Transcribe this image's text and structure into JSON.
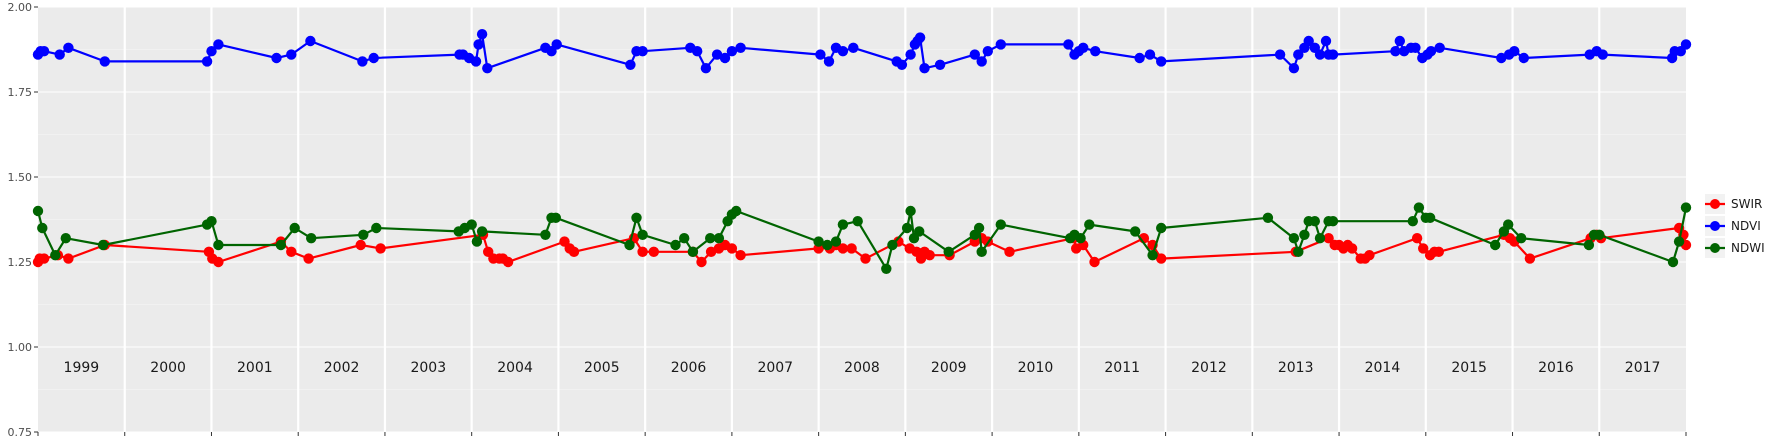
{
  "chart_data": {
    "type": "line",
    "title": "",
    "xlabel": "",
    "ylabel": "",
    "ylim": [
      0.75,
      2.0
    ],
    "yticks": [
      "0.75",
      "1.00",
      "1.25",
      "1.50",
      "1.75",
      "2.00"
    ],
    "xlim": [
      1998.5,
      2017.5
    ],
    "years": [
      "1999",
      "2000",
      "2001",
      "2002",
      "2003",
      "2004",
      "2005",
      "2006",
      "2007",
      "2008",
      "2009",
      "2010",
      "2011",
      "2012",
      "2013",
      "2014",
      "2015",
      "2016",
      "2017"
    ],
    "grid": true,
    "legend_position": "right",
    "series": [
      {
        "name": "SWIR",
        "color": "#ff0000",
        "x": [
          1998.5,
          1998.52,
          1998.57,
          1998.73,
          1998.85,
          1999.27,
          2000.47,
          2000.51,
          2000.58,
          2001.3,
          2001.42,
          2001.62,
          2002.22,
          2002.45,
          2003.63,
          2003.69,
          2003.75,
          2003.82,
          2003.86,
          2003.92,
          2004.57,
          2004.63,
          2004.68,
          2005.37,
          2005.47,
          2005.6,
          2006.05,
          2006.15,
          2006.26,
          2006.35,
          2006.42,
          2006.5,
          2006.6,
          2007.5,
          2007.63,
          2007.7,
          2007.78,
          2007.88,
          2008.04,
          2008.42,
          2008.55,
          2008.63,
          2008.68,
          2008.72,
          2008.78,
          2009.01,
          2009.3,
          2009.38,
          2009.45,
          2009.7,
          2010.44,
          2010.47,
          2010.55,
          2010.68,
          2011.25,
          2011.35,
          2011.45,
          2013.0,
          2013.38,
          2013.45,
          2013.5,
          2013.55,
          2013.6,
          2013.65,
          2013.75,
          2013.8,
          2013.85,
          2014.4,
          2014.47,
          2014.55,
          2014.6,
          2014.65,
          2015.4,
          2015.47,
          2015.52,
          2015.7,
          2016.4,
          2016.47,
          2016.52,
          2017.42,
          2017.47,
          2017.5
        ],
        "values": [
          1.25,
          1.26,
          1.26,
          1.27,
          1.26,
          1.3,
          1.28,
          1.26,
          1.25,
          1.31,
          1.28,
          1.26,
          1.3,
          1.29,
          1.33,
          1.28,
          1.26,
          1.26,
          1.26,
          1.25,
          1.31,
          1.29,
          1.28,
          1.32,
          1.28,
          1.28,
          1.28,
          1.25,
          1.28,
          1.29,
          1.3,
          1.29,
          1.27,
          1.29,
          1.29,
          1.3,
          1.29,
          1.29,
          1.26,
          1.31,
          1.29,
          1.28,
          1.26,
          1.28,
          1.27,
          1.27,
          1.31,
          1.32,
          1.31,
          1.28,
          1.32,
          1.29,
          1.3,
          1.25,
          1.32,
          1.3,
          1.26,
          1.28,
          1.32,
          1.3,
          1.3,
          1.29,
          1.3,
          1.29,
          1.26,
          1.26,
          1.27,
          1.32,
          1.29,
          1.27,
          1.28,
          1.28,
          1.33,
          1.32,
          1.31,
          1.26,
          1.32,
          1.33,
          1.32,
          1.35,
          1.33,
          1.3
        ]
      },
      {
        "name": "NDVI",
        "color": "#0000ff",
        "x": [
          1998.5,
          1998.53,
          1998.57,
          1998.75,
          1998.85,
          1999.27,
          2000.45,
          2000.5,
          2000.58,
          2001.25,
          2001.42,
          2001.64,
          2002.24,
          2002.37,
          2003.36,
          2003.4,
          2003.47,
          2003.55,
          2003.58,
          2003.62,
          2003.68,
          2004.35,
          2004.42,
          2004.48,
          2005.33,
          2005.4,
          2005.47,
          2006.02,
          2006.1,
          2006.2,
          2006.33,
          2006.42,
          2006.5,
          2006.6,
          2007.52,
          2007.62,
          2007.7,
          2007.78,
          2007.9,
          2008.4,
          2008.46,
          2008.56,
          2008.61,
          2008.64,
          2008.67,
          2008.72,
          2008.9,
          2009.3,
          2009.38,
          2009.45,
          2009.6,
          2010.38,
          2010.45,
          2010.5,
          2010.55,
          2010.69,
          2011.2,
          2011.32,
          2011.45,
          2012.82,
          2012.98,
          2013.03,
          2013.1,
          2013.15,
          2013.22,
          2013.28,
          2013.35,
          2013.38,
          2013.43,
          2014.15,
          2014.2,
          2014.25,
          2014.33,
          2014.38,
          2014.46,
          2014.52,
          2014.56,
          2014.66,
          2015.37,
          2015.46,
          2015.52,
          2015.63,
          2016.39,
          2016.47,
          2016.54,
          2017.34,
          2017.37,
          2017.44,
          2017.5
        ],
        "values": [
          1.86,
          1.87,
          1.87,
          1.86,
          1.88,
          1.84,
          1.84,
          1.87,
          1.89,
          1.85,
          1.86,
          1.9,
          1.84,
          1.85,
          1.86,
          1.86,
          1.85,
          1.84,
          1.89,
          1.92,
          1.82,
          1.88,
          1.87,
          1.89,
          1.83,
          1.87,
          1.87,
          1.88,
          1.87,
          1.82,
          1.86,
          1.85,
          1.87,
          1.88,
          1.86,
          1.84,
          1.88,
          1.87,
          1.88,
          1.84,
          1.83,
          1.86,
          1.89,
          1.9,
          1.91,
          1.82,
          1.83,
          1.86,
          1.84,
          1.87,
          1.89,
          1.89,
          1.86,
          1.87,
          1.88,
          1.87,
          1.85,
          1.86,
          1.84,
          1.86,
          1.82,
          1.86,
          1.88,
          1.9,
          1.88,
          1.86,
          1.9,
          1.86,
          1.86,
          1.87,
          1.9,
          1.87,
          1.88,
          1.88,
          1.85,
          1.86,
          1.87,
          1.88,
          1.85,
          1.86,
          1.87,
          1.85,
          1.86,
          1.87,
          1.86,
          1.85,
          1.87,
          1.87,
          1.89
        ]
      },
      {
        "name": "NDWI",
        "color": "#006400",
        "x": [
          1998.5,
          1998.55,
          1998.7,
          1998.82,
          1999.25,
          2000.45,
          2000.5,
          2000.58,
          2001.3,
          2001.46,
          2001.65,
          2002.25,
          2002.4,
          2003.35,
          2003.42,
          2003.5,
          2003.56,
          2003.62,
          2004.35,
          2004.42,
          2004.47,
          2005.32,
          2005.4,
          2005.47,
          2005.85,
          2005.95,
          2006.05,
          2006.25,
          2006.35,
          2006.45,
          2006.5,
          2006.55,
          2007.5,
          2007.6,
          2007.7,
          2007.78,
          2007.95,
          2008.28,
          2008.35,
          2008.52,
          2008.56,
          2008.6,
          2008.66,
          2009.0,
          2009.3,
          2009.35,
          2009.38,
          2009.6,
          2010.4,
          2010.45,
          2010.52,
          2010.62,
          2011.15,
          2011.35,
          2011.45,
          2012.68,
          2012.98,
          2013.03,
          2013.1,
          2013.15,
          2013.22,
          2013.28,
          2013.38,
          2013.43,
          2014.35,
          2014.42,
          2014.5,
          2014.55,
          2015.3,
          2015.4,
          2015.45,
          2015.6,
          2016.38,
          2016.44,
          2016.5,
          2017.35,
          2017.42,
          2017.5
        ],
        "values": [
          1.4,
          1.35,
          1.27,
          1.32,
          1.3,
          1.36,
          1.37,
          1.3,
          1.3,
          1.35,
          1.32,
          1.33,
          1.35,
          1.34,
          1.35,
          1.36,
          1.31,
          1.34,
          1.33,
          1.38,
          1.38,
          1.3,
          1.38,
          1.33,
          1.3,
          1.32,
          1.28,
          1.32,
          1.32,
          1.37,
          1.39,
          1.4,
          1.31,
          1.3,
          1.31,
          1.36,
          1.37,
          1.23,
          1.3,
          1.35,
          1.4,
          1.32,
          1.34,
          1.28,
          1.33,
          1.35,
          1.28,
          1.36,
          1.32,
          1.33,
          1.32,
          1.36,
          1.34,
          1.27,
          1.35,
          1.38,
          1.32,
          1.28,
          1.33,
          1.37,
          1.37,
          1.32,
          1.37,
          1.37,
          1.37,
          1.41,
          1.38,
          1.38,
          1.3,
          1.34,
          1.36,
          1.32,
          1.3,
          1.33,
          1.33,
          1.25,
          1.31,
          1.41
        ]
      }
    ]
  }
}
